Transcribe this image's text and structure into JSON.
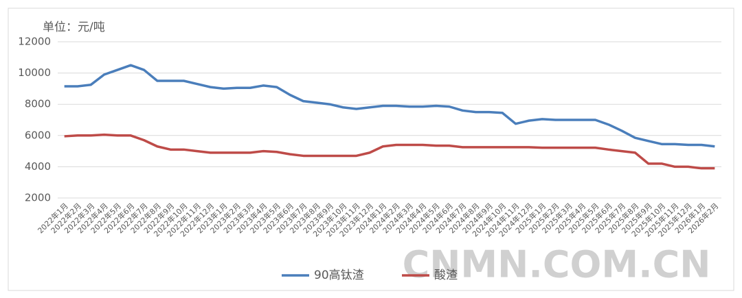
{
  "chart_data": {
    "type": "line",
    "y_label": "单位：元/吨",
    "watermark": "CNMN.COM.CN",
    "categories": [
      "2022年1月",
      "2022年2月",
      "2022年3月",
      "2022年4月",
      "2022年5月",
      "2022年6月",
      "2022年7月",
      "2022年8月",
      "2022年9月",
      "2022年10月",
      "2022年11月",
      "2022年12月",
      "2023年1月",
      "2023年2月",
      "2023年3月",
      "2023年4月",
      "2023年5月",
      "2023年6月",
      "2023年7月",
      "2023年8月",
      "2023年9月",
      "2023年10月",
      "2023年11月",
      "2023年12月",
      "2024年1月",
      "2024年2月",
      "2024年3月",
      "2024年4月",
      "2024年5月",
      "2024年6月",
      "2024年7月",
      "2024年8月",
      "2024年9月",
      "2024年10月",
      "2024年11月",
      "2024年12月",
      "2025年1月",
      "2025年2月",
      "2025年3月",
      "2025年4月",
      "2025年5月",
      "2025年6月",
      "2025年7月",
      "2025年8月",
      "2025年9月",
      "2025年10月",
      "2025年11月",
      "2025年12月",
      "2026年1月",
      "2026年2月"
    ],
    "series": [
      {
        "name": "90高钛渣",
        "color": "#4a7ebb",
        "values": [
          9150,
          9150,
          9250,
          9900,
          10200,
          10500,
          10200,
          9500,
          9500,
          9500,
          9300,
          9100,
          9000,
          9050,
          9050,
          9200,
          9100,
          8600,
          8200,
          8100,
          8000,
          7800,
          7700,
          7800,
          7900,
          7900,
          7850,
          7850,
          7900,
          7850,
          7600,
          7500,
          7500,
          7450,
          6750,
          6950,
          7050,
          7000,
          7000,
          7000,
          7000,
          6700,
          6300,
          5850,
          5650,
          5450,
          5450,
          5400,
          5400,
          5300
        ]
      },
      {
        "name": "酸渣",
        "color": "#be4b48",
        "values": [
          5950,
          6000,
          6000,
          6050,
          6000,
          6000,
          5700,
          5300,
          5100,
          5100,
          5000,
          4900,
          4900,
          4900,
          4900,
          5000,
          4950,
          4800,
          4700,
          4700,
          4700,
          4700,
          4700,
          4900,
          5300,
          5400,
          5400,
          5400,
          5350,
          5350,
          5250,
          5250,
          5250,
          5250,
          5250,
          5250,
          5220,
          5220,
          5220,
          5220,
          5220,
          5100,
          5000,
          4900,
          4200,
          4200,
          4000,
          4000,
          3900,
          3900
        ]
      }
    ],
    "ylim": [
      2000,
      12000
    ],
    "yticks": [
      2000,
      4000,
      6000,
      8000,
      10000,
      12000
    ],
    "grid": true
  }
}
